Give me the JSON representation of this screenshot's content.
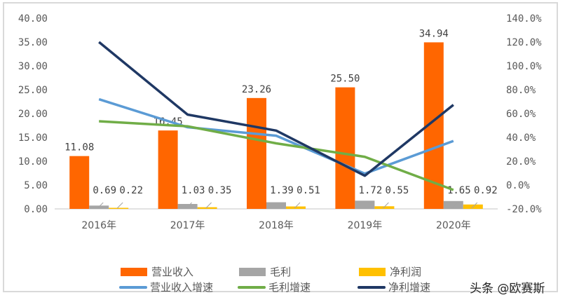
{
  "chart_data": {
    "type": "bar+line",
    "categories": [
      "2016年",
      "2017年",
      "2018年",
      "2019年",
      "2020年"
    ],
    "left_axis": {
      "ylim": [
        0,
        40
      ],
      "ticks": [
        "0.00",
        "5.00",
        "10.00",
        "15.00",
        "20.00",
        "25.00",
        "30.00",
        "35.00",
        "40.00"
      ]
    },
    "right_axis": {
      "ylim": [
        -20,
        140
      ],
      "unit": "%",
      "ticks": [
        "-20.0%",
        "0.0%",
        "20.0%",
        "40.0%",
        "60.0%",
        "80.0%",
        "100.0%",
        "120.0%",
        "140.0%"
      ]
    },
    "bar_series": [
      {
        "name": "营业收入",
        "color": "#ff6600",
        "values": [
          11.08,
          16.45,
          23.26,
          25.5,
          34.94
        ],
        "labels": [
          "11.08",
          "16.45",
          "23.26",
          "25.50",
          "34.94"
        ]
      },
      {
        "name": "毛利",
        "color": "#a5a5a5",
        "values": [
          0.69,
          1.03,
          1.39,
          1.72,
          1.65
        ],
        "labels": [
          "0.69",
          "1.03",
          "1.39",
          "1.72",
          "1.65"
        ]
      },
      {
        "name": "净利润",
        "color": "#ffc000",
        "values": [
          0.22,
          0.35,
          0.51,
          0.55,
          0.92
        ],
        "labels": [
          "0.22",
          "0.35",
          "0.51",
          "0.55",
          "0.92"
        ]
      }
    ],
    "line_series": [
      {
        "name": "营业收入增速",
        "color": "#5b9bd5",
        "axis": "right",
        "values": [
          72,
          48.5,
          41.4,
          9.6,
          37.0
        ]
      },
      {
        "name": "毛利增速",
        "color": "#70ad47",
        "axis": "right",
        "values": [
          53.5,
          49.3,
          35.0,
          23.7,
          -4.1
        ]
      },
      {
        "name": "净利增速",
        "color": "#1f3864",
        "axis": "right",
        "values": [
          120,
          59.1,
          45.7,
          7.8,
          67.3
        ]
      }
    ],
    "legend_position": "bottom",
    "grid": false
  },
  "watermark": "头条 @欧赛斯"
}
